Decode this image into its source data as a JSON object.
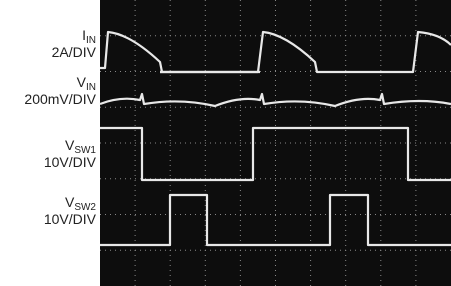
{
  "channels": [
    {
      "symbol": "I",
      "subscript": "IN",
      "scale": "2A/DIV"
    },
    {
      "symbol": "V",
      "subscript": "IN",
      "scale": "200mV/DIV"
    },
    {
      "symbol": "V",
      "subscript": "SW1",
      "scale": "10V/DIV"
    },
    {
      "symbol": "V",
      "subscript": "SW2",
      "scale": "10V/DIV"
    }
  ]
}
